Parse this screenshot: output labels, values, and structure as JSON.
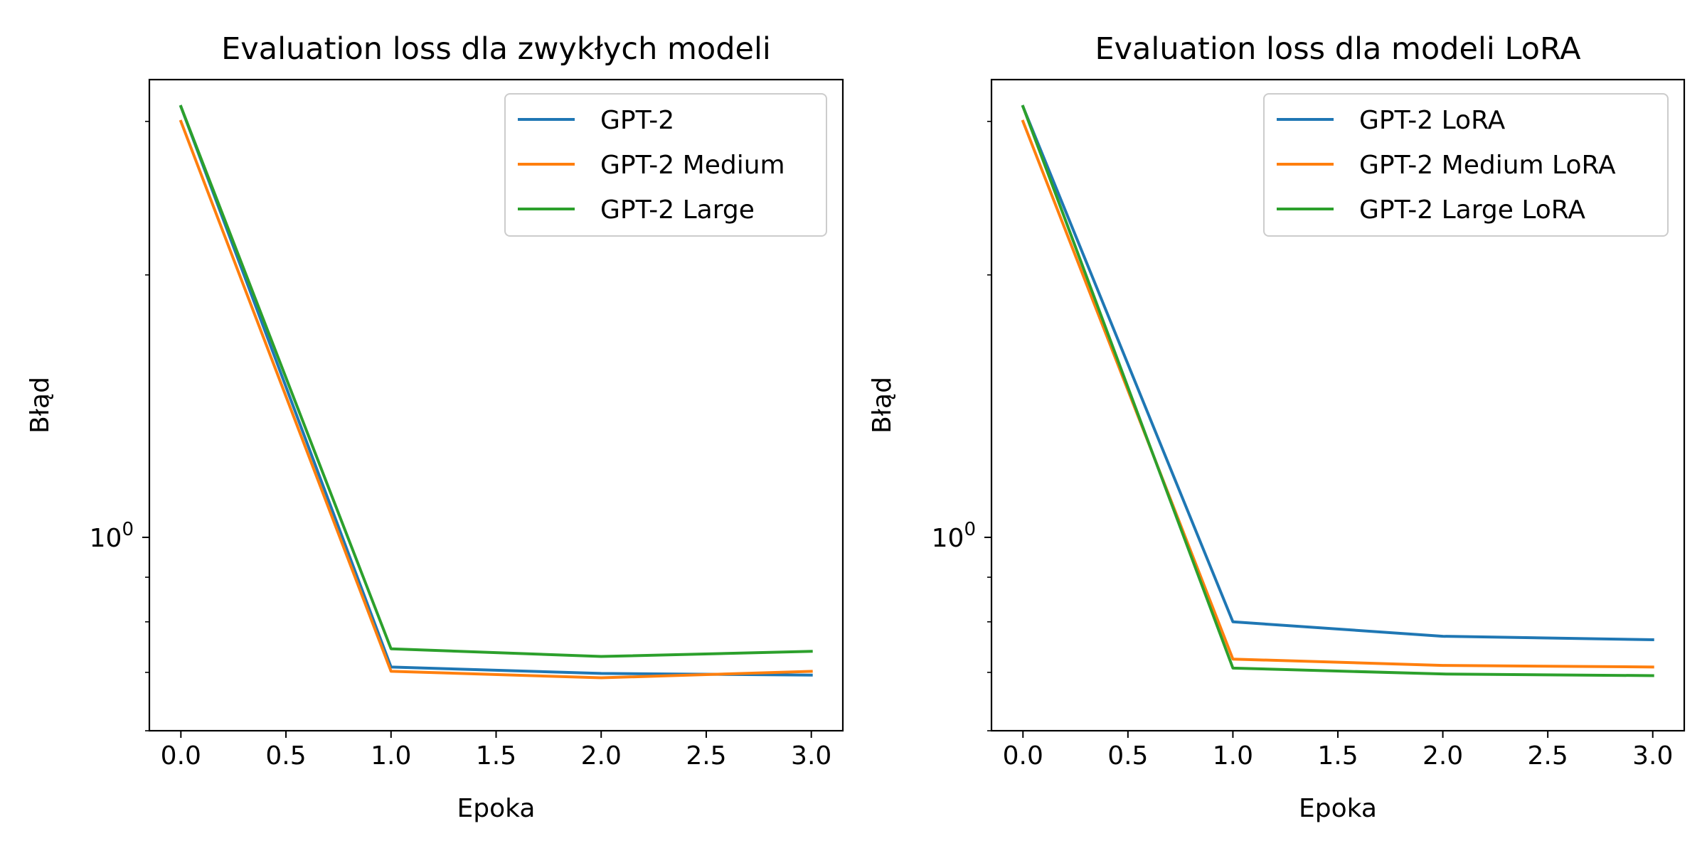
{
  "chart_data": [
    {
      "type": "line",
      "title": "Evaluation loss dla zwykłych modeli",
      "xlabel": "Epoka",
      "ylabel": "Błąd",
      "yscale": "log",
      "xlim": [
        -0.15,
        3.15
      ],
      "ylim": [
        0.6,
        3.35
      ],
      "xticks": [
        "0.0",
        "0.5",
        "1.0",
        "1.5",
        "2.0",
        "2.5",
        "3.0"
      ],
      "ytick_major_label": "10⁰",
      "legend_position": "upper right",
      "grid": false,
      "x": [
        0,
        1,
        2,
        3
      ],
      "series": [
        {
          "name": "GPT-2",
          "color": "#1f77b4",
          "values": [
            3.12,
            0.71,
            0.698,
            0.695
          ]
        },
        {
          "name": "GPT-2 Medium",
          "color": "#ff7f0e",
          "values": [
            3.0,
            0.702,
            0.69,
            0.702
          ]
        },
        {
          "name": "GPT-2 Large",
          "color": "#2ca02c",
          "values": [
            3.12,
            0.745,
            0.73,
            0.74
          ]
        }
      ]
    },
    {
      "type": "line",
      "title": "Evaluation loss dla modeli LoRA",
      "xlabel": "Epoka",
      "ylabel": "Błąd",
      "yscale": "log",
      "xlim": [
        -0.15,
        3.15
      ],
      "ylim": [
        0.6,
        3.35
      ],
      "xticks": [
        "0.0",
        "0.5",
        "1.0",
        "1.5",
        "2.0",
        "2.5",
        "3.0"
      ],
      "ytick_major_label": "10⁰",
      "legend_position": "upper right",
      "grid": false,
      "x": [
        0,
        1,
        2,
        3
      ],
      "series": [
        {
          "name": "GPT-2 LoRA",
          "color": "#1f77b4",
          "values": [
            3.12,
            0.8,
            0.77,
            0.763
          ]
        },
        {
          "name": "GPT-2 Medium LoRA",
          "color": "#ff7f0e",
          "values": [
            3.0,
            0.725,
            0.713,
            0.71
          ]
        },
        {
          "name": "GPT-2 Large LoRA",
          "color": "#2ca02c",
          "values": [
            3.12,
            0.708,
            0.697,
            0.694
          ]
        }
      ]
    }
  ]
}
